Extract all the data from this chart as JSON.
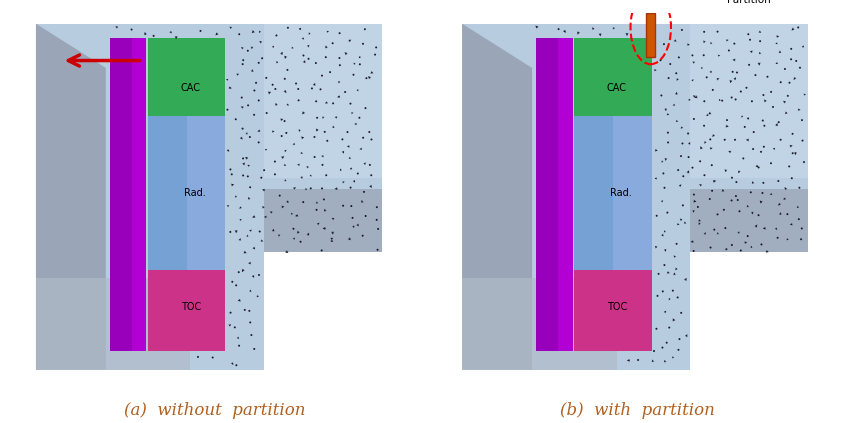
{
  "fig_width": 8.44,
  "fig_height": 4.23,
  "dpi": 100,
  "bg_color": "#ffffff",
  "caption_left": "(a)  without  partition",
  "caption_right": "(b)  with  partition",
  "caption_color": "#b06020",
  "caption_fontsize": 12,
  "panel_bg": "#b8cce0",
  "panel_bg2": "#c8daea",
  "panel_bg3": "#d5e5f0",
  "cac_color": "#33aa55",
  "rad_color": "#6699cc",
  "rad_color2": "#88aadd",
  "toc_color": "#cc3388",
  "purple_side": "#9900bb",
  "purple_side2": "#cc00ee",
  "gray_beam": "#909aaa",
  "gray_beam2": "#b0bac8",
  "label_cac": "CAC",
  "label_rad": "Rad.",
  "label_toc": "TOC",
  "label_partition": "Partition",
  "seed": 7
}
